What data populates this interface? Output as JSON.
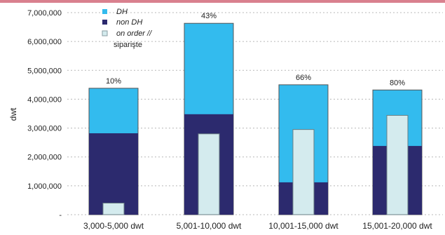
{
  "chart_data": {
    "type": "bar",
    "categories": [
      "3,000-5,000 dwt",
      "5,001-10,000 dwt",
      "10,001-15,000 dwt",
      "15,001-20,000 dwt"
    ],
    "series": [
      {
        "name": "DH",
        "values": [
          4380000,
          6630000,
          4500000,
          4320000
        ],
        "color": "#33bbee"
      },
      {
        "name": "non DH",
        "values": [
          2820000,
          3480000,
          1120000,
          2380000
        ],
        "color": "#2c2a6e"
      },
      {
        "name": "on order //",
        "name_line2": "siparişte",
        "values": [
          400000,
          2800000,
          2950000,
          3440000
        ],
        "color": "#d4ebee"
      }
    ],
    "percent_labels": [
      "10%",
      "43%",
      "66%",
      "80%"
    ],
    "ylabel": "dwt",
    "ylim": [
      0,
      7000000
    ],
    "yticks": [
      "-",
      "1,000,000",
      "2,000,000",
      "3,000,000",
      "4,000,000",
      "5,000,000",
      "6,000,000",
      "7,000,000"
    ],
    "grid": true,
    "legend_position": "top-left",
    "top_band_color": "#d9808e"
  }
}
